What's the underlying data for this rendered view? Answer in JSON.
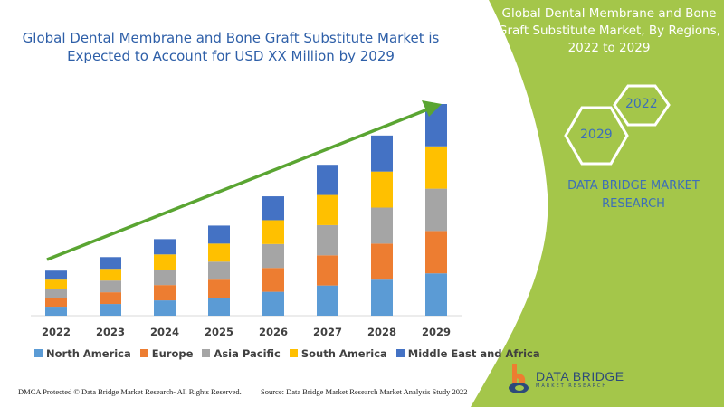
{
  "header": {
    "title": "Global Dental Membrane and Bone Graft Substitute Market is Expected to Account for USD XX Million by 2029"
  },
  "side_panel": {
    "title": "Global Dental Membrane and Bone Graft Substitute Market, By Regions, 2022 to 2029",
    "hex_start": "2022",
    "hex_end": "2029",
    "brand": "DATA BRIDGE MARKET RESEARCH",
    "logo_text": "DATA BRIDGE",
    "logo_subtext": "MARKET RESEARCH",
    "panel_color": "#a4c64a"
  },
  "footer": {
    "copyright": "DMCA Protected © Data Bridge Market Research- All Rights Reserved.",
    "source": "Source: Data Bridge Market Research Market Analysis Study 2022"
  },
  "chart_data": {
    "type": "bar",
    "stacked": true,
    "title": "",
    "xlabel": "",
    "ylabel": "",
    "value_axis_shown": false,
    "grid": false,
    "legend_position": "bottom",
    "trend_arrow_color": "#5aa532",
    "categories": [
      "2022",
      "2023",
      "2024",
      "2025",
      "2026",
      "2027",
      "2028",
      "2029"
    ],
    "series": [
      {
        "name": "North America",
        "color": "#5b9bd5",
        "values": [
          2.0,
          2.6,
          3.4,
          4.0,
          5.3,
          6.7,
          8.0,
          9.4
        ]
      },
      {
        "name": "Europe",
        "color": "#ed7d31",
        "values": [
          2.0,
          2.6,
          3.4,
          4.0,
          5.3,
          6.7,
          8.0,
          9.4
        ]
      },
      {
        "name": "Asia Pacific",
        "color": "#a5a5a5",
        "values": [
          2.0,
          2.6,
          3.4,
          4.0,
          5.3,
          6.7,
          8.0,
          9.4
        ]
      },
      {
        "name": "South America",
        "color": "#ffc000",
        "values": [
          2.0,
          2.6,
          3.4,
          4.0,
          5.3,
          6.7,
          8.0,
          9.4
        ]
      },
      {
        "name": "Middle East and Africa",
        "color": "#4472c4",
        "values": [
          2.0,
          2.6,
          3.4,
          4.0,
          5.3,
          6.7,
          8.0,
          9.4
        ]
      }
    ]
  }
}
